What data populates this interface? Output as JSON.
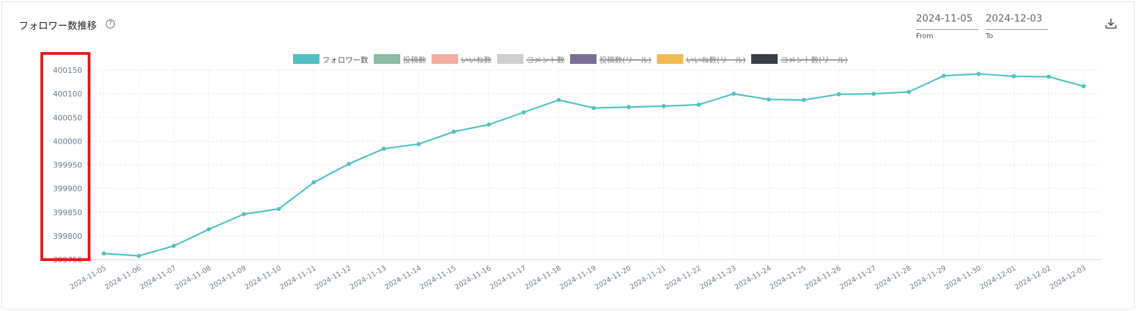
{
  "header": {
    "title": "フォロワー数推移",
    "help_icon": "question-circle-icon",
    "from_value": "2024-11-05",
    "from_label": "From",
    "to_value": "2024-12-03",
    "to_label": "To",
    "download_icon": "download-icon"
  },
  "colors": {
    "series_line": "#4fc1c1",
    "highlight": "#e41c1c"
  },
  "chart_data": {
    "type": "line",
    "title": "",
    "xlabel": "",
    "ylabel": "",
    "ylim": [
      399750,
      400150
    ],
    "yticks": [
      400150,
      400100,
      400050,
      400000,
      399950,
      399900,
      399850,
      399800,
      399750
    ],
    "grid": true,
    "legend_position": "top-center",
    "legend": [
      {
        "name": "フォロワー数",
        "color": "#4fc1c1",
        "active": true
      },
      {
        "name": "投稿数",
        "color": "#8cbba6",
        "active": false
      },
      {
        "name": "いいね数",
        "color": "#f3aca1",
        "active": false
      },
      {
        "name": "コメント数",
        "color": "#cfcfcf",
        "active": false
      },
      {
        "name": "投稿数(リール)",
        "color": "#7a6e98",
        "active": false
      },
      {
        "name": "いいね数(リール)",
        "color": "#f0bb52",
        "active": false
      },
      {
        "name": "コメント数(リール)",
        "color": "#3a3c4a",
        "active": false
      }
    ],
    "categories": [
      "2024-11-05",
      "2024-11-06",
      "2024-11-07",
      "2024-11-08",
      "2024-11-09",
      "2024-11-10",
      "2024-11-11",
      "2024-11-12",
      "2024-11-13",
      "2024-11-14",
      "2024-11-15",
      "2024-11-16",
      "2024-11-17",
      "2024-11-18",
      "2024-11-19",
      "2024-11-20",
      "2024-11-21",
      "2024-11-22",
      "2024-11-23",
      "2024-11-24",
      "2024-11-25",
      "2024-11-26",
      "2024-11-27",
      "2024-11-28",
      "2024-11-29",
      "2024-11-30",
      "2024-12-01",
      "2024-12-02",
      "2024-12-03"
    ],
    "series": [
      {
        "name": "フォロワー数",
        "values": [
          399763,
          399758,
          399779,
          399814,
          399846,
          399857,
          399913,
          399952,
          399984,
          399994,
          400020,
          400035,
          400061,
          400087,
          400070,
          400072,
          400074,
          400077,
          400100,
          400088,
          400087,
          400099,
          400100,
          400104,
          400138,
          400142,
          400137,
          400136,
          400116
        ]
      }
    ]
  }
}
